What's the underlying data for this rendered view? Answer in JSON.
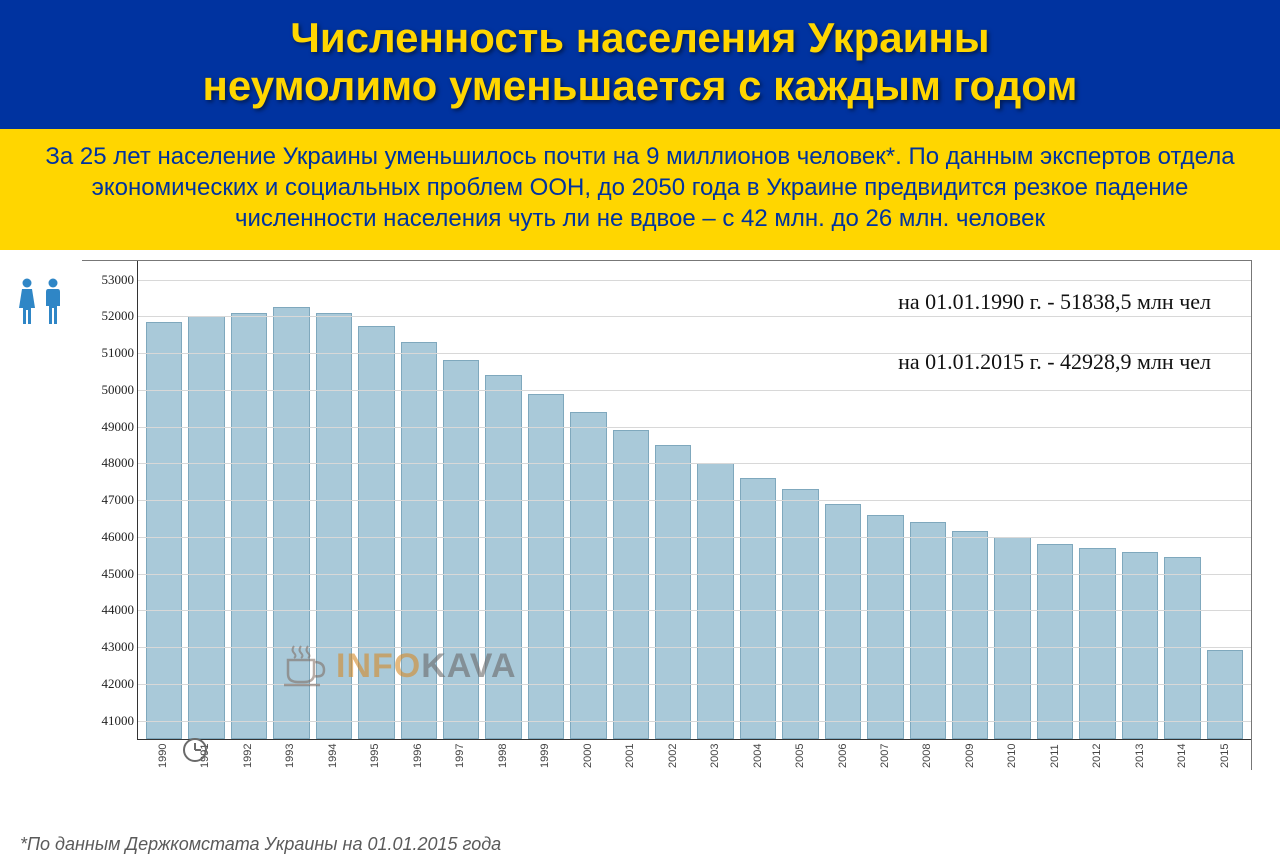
{
  "header": {
    "title_line1": "Численность населения Украины",
    "title_line2": "неумолимо уменьшается с каждым годом"
  },
  "subheader": {
    "text": "За 25 лет население Украины уменьшилось почти на 9 миллионов человек*. По данным экспертов отдела экономических и социальных проблем ООН, до 2050 года в Украине предвидится резкое падение численности населения чуть ли не вдвое – с 42 млн. до 26 млн. человек"
  },
  "chart": {
    "type": "bar",
    "ymin": 40500,
    "ymax": 53500,
    "yticks": [
      41000,
      42000,
      43000,
      44000,
      45000,
      46000,
      47000,
      48000,
      49000,
      50000,
      51000,
      52000,
      53000
    ],
    "years": [
      "1990",
      "1991",
      "1992",
      "1993",
      "1994",
      "1995",
      "1996",
      "1997",
      "1998",
      "1999",
      "2000",
      "2001",
      "2002",
      "2003",
      "2004",
      "2005",
      "2006",
      "2007",
      "2008",
      "2009",
      "2010",
      "2011",
      "2012",
      "2013",
      "2014",
      "2015"
    ],
    "values": [
      51838,
      52000,
      52100,
      52250,
      52100,
      51750,
      51300,
      50800,
      50400,
      49900,
      49400,
      48900,
      48500,
      48000,
      47600,
      47300,
      46900,
      46600,
      46400,
      46150,
      46000,
      45800,
      45700,
      45600,
      45450,
      42929
    ],
    "bar_color": "#a9c9d9",
    "bar_border": "#7fa8bd",
    "grid_color": "#d8d8d8",
    "axis_color": "#333333",
    "frame_color": "#777777",
    "background": "#ffffff",
    "y_label_color": "#222222",
    "y_label_fontsize": 13
  },
  "annotations": {
    "a1": "на 01.01.1990 г. - 51838,5 млн чел",
    "a2": "на 01.01.2015 г. - 42928,9 млн чел"
  },
  "watermark": {
    "cup_color": "#7a655a",
    "text_info": "INFO",
    "text_kava": "KAVA",
    "info_color": "#d58b2a",
    "kava_color": "#6a6a6a"
  },
  "icons": {
    "female_color": "#2f86c6",
    "male_color": "#2f86c6",
    "clock_color": "#6a6a6a"
  },
  "footnote": "*По данным Держкомстата Украины на 01.01.2015 года",
  "colors": {
    "header_bg": "#0033a0",
    "header_fg": "#ffd600",
    "sub_bg": "#ffd600",
    "sub_fg": "#0033a0"
  }
}
